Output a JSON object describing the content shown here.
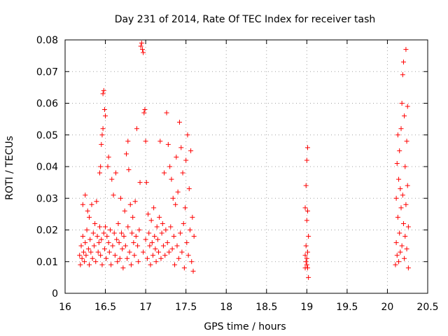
{
  "chart_data": {
    "type": "scatter",
    "title": "Day 231 of 2014, Rate Of TEC Index for receiver tash",
    "xlabel": "GPS time / hours",
    "ylabel": "ROTI / TECUs",
    "xlim": [
      16,
      20.5
    ],
    "ylim": [
      0,
      0.08
    ],
    "grid": true,
    "marker": "+",
    "marker_color": "#ff0000",
    "xticks": [
      "16",
      "16.5",
      "17",
      "17.5",
      "18",
      "18.5",
      "19",
      "19.5",
      "20",
      "20.5"
    ],
    "yticks": [
      "0",
      "0.01",
      "0.02",
      "0.03",
      "0.04",
      "0.05",
      "0.06",
      "0.07",
      "0.08"
    ],
    "series": [
      {
        "name": "ROTI",
        "points": [
          [
            16.18,
            0.012
          ],
          [
            16.19,
            0.009
          ],
          [
            16.2,
            0.015
          ],
          [
            16.21,
            0.011
          ],
          [
            16.22,
            0.018
          ],
          [
            16.22,
            0.028
          ],
          [
            16.23,
            0.013
          ],
          [
            16.24,
            0.01
          ],
          [
            16.25,
            0.031
          ],
          [
            16.25,
            0.016
          ],
          [
            16.26,
            0.012
          ],
          [
            16.27,
            0.02
          ],
          [
            16.28,
            0.026
          ],
          [
            16.29,
            0.014
          ],
          [
            16.3,
            0.009
          ],
          [
            16.3,
            0.024
          ],
          [
            16.31,
            0.017
          ],
          [
            16.32,
            0.013
          ],
          [
            16.33,
            0.028
          ],
          [
            16.34,
            0.011
          ],
          [
            16.35,
            0.019
          ],
          [
            16.36,
            0.015
          ],
          [
            16.37,
            0.022
          ],
          [
            16.38,
            0.01
          ],
          [
            16.39,
            0.029
          ],
          [
            16.4,
            0.018
          ],
          [
            16.41,
            0.013
          ],
          [
            16.42,
            0.016
          ],
          [
            16.43,
            0.038
          ],
          [
            16.43,
            0.021
          ],
          [
            16.44,
            0.04
          ],
          [
            16.44,
            0.012
          ],
          [
            16.45,
            0.047
          ],
          [
            16.45,
            0.017
          ],
          [
            16.46,
            0.05
          ],
          [
            16.46,
            0.009
          ],
          [
            16.47,
            0.052
          ],
          [
            16.47,
            0.063
          ],
          [
            16.48,
            0.064
          ],
          [
            16.48,
            0.019
          ],
          [
            16.49,
            0.058
          ],
          [
            16.49,
            0.014
          ],
          [
            16.5,
            0.056
          ],
          [
            16.5,
            0.021
          ],
          [
            16.51,
            0.011
          ],
          [
            16.52,
            0.018
          ],
          [
            16.53,
            0.04
          ],
          [
            16.54,
            0.043
          ],
          [
            16.54,
            0.016
          ],
          [
            16.55,
            0.013
          ],
          [
            16.56,
            0.02
          ],
          [
            16.57,
            0.009
          ],
          [
            16.58,
            0.036
          ],
          [
            16.59,
            0.015
          ],
          [
            16.6,
            0.031
          ],
          [
            16.61,
            0.019
          ],
          [
            16.62,
            0.012
          ],
          [
            16.63,
            0.038
          ],
          [
            16.64,
            0.017
          ],
          [
            16.65,
            0.01
          ],
          [
            16.66,
            0.022
          ],
          [
            16.67,
            0.016
          ],
          [
            16.68,
            0.011
          ],
          [
            16.69,
            0.03
          ],
          [
            16.7,
            0.019
          ],
          [
            16.71,
            0.014
          ],
          [
            16.72,
            0.008
          ],
          [
            16.73,
            0.018
          ],
          [
            16.74,
            0.026
          ],
          [
            16.75,
            0.015
          ],
          [
            16.76,
            0.044
          ],
          [
            16.77,
            0.011
          ],
          [
            16.78,
            0.048
          ],
          [
            16.78,
            0.021
          ],
          [
            16.79,
            0.039
          ],
          [
            16.8,
            0.013
          ],
          [
            16.81,
            0.028
          ],
          [
            16.82,
            0.009
          ],
          [
            16.83,
            0.019
          ],
          [
            16.84,
            0.024
          ],
          [
            16.85,
            0.016
          ],
          [
            16.86,
            0.012
          ],
          [
            16.87,
            0.029
          ],
          [
            16.88,
            0.018
          ],
          [
            16.89,
            0.052
          ],
          [
            16.9,
            0.015
          ],
          [
            16.91,
            0.01
          ],
          [
            16.92,
            0.02
          ],
          [
            16.93,
            0.035
          ],
          [
            16.94,
            0.078
          ],
          [
            16.95,
            0.079
          ],
          [
            16.96,
            0.077
          ],
          [
            16.97,
            0.076
          ],
          [
            16.97,
            0.013
          ],
          [
            16.98,
            0.057
          ],
          [
            16.99,
            0.058
          ],
          [
            17.0,
            0.048
          ],
          [
            17.0,
            0.017
          ],
          [
            17.01,
            0.035
          ],
          [
            17.02,
            0.011
          ],
          [
            17.03,
            0.025
          ],
          [
            17.04,
            0.019
          ],
          [
            17.05,
            0.015
          ],
          [
            17.06,
            0.009
          ],
          [
            17.07,
            0.023
          ],
          [
            17.08,
            0.016
          ],
          [
            17.09,
            0.012
          ],
          [
            17.1,
            0.027
          ],
          [
            17.11,
            0.018
          ],
          [
            17.12,
            0.014
          ],
          [
            17.13,
            0.01
          ],
          [
            17.14,
            0.021
          ],
          [
            17.15,
            0.017
          ],
          [
            17.16,
            0.013
          ],
          [
            17.17,
            0.024
          ],
          [
            17.18,
            0.048
          ],
          [
            17.19,
            0.011
          ],
          [
            17.2,
            0.019
          ],
          [
            17.21,
            0.022
          ],
          [
            17.22,
            0.015
          ],
          [
            17.23,
            0.038
          ],
          [
            17.24,
            0.012
          ],
          [
            17.25,
            0.02
          ],
          [
            17.26,
            0.057
          ],
          [
            17.27,
            0.016
          ],
          [
            17.28,
            0.047
          ],
          [
            17.29,
            0.013
          ],
          [
            17.3,
            0.04
          ],
          [
            17.31,
            0.021
          ],
          [
            17.32,
            0.036
          ],
          [
            17.33,
            0.014
          ],
          [
            17.34,
            0.03
          ],
          [
            17.35,
            0.018
          ],
          [
            17.36,
            0.009
          ],
          [
            17.37,
            0.028
          ],
          [
            17.38,
            0.043
          ],
          [
            17.39,
            0.015
          ],
          [
            17.4,
            0.032
          ],
          [
            17.41,
            0.011
          ],
          [
            17.42,
            0.054
          ],
          [
            17.43,
            0.019
          ],
          [
            17.44,
            0.046
          ],
          [
            17.45,
            0.013
          ],
          [
            17.46,
            0.038
          ],
          [
            17.47,
            0.022
          ],
          [
            17.48,
            0.008
          ],
          [
            17.49,
            0.027
          ],
          [
            17.5,
            0.042
          ],
          [
            17.51,
            0.016
          ],
          [
            17.52,
            0.05
          ],
          [
            17.53,
            0.012
          ],
          [
            17.54,
            0.033
          ],
          [
            17.55,
            0.02
          ],
          [
            17.56,
            0.045
          ],
          [
            17.57,
            0.01
          ],
          [
            17.58,
            0.024
          ],
          [
            17.59,
            0.007
          ],
          [
            17.6,
            0.018
          ],
          [
            18.98,
            0.027
          ],
          [
            18.98,
            0.012
          ],
          [
            18.98,
            0.008
          ],
          [
            18.99,
            0.034
          ],
          [
            18.99,
            0.015
          ],
          [
            18.99,
            0.01
          ],
          [
            19.0,
            0.042
          ],
          [
            19.0,
            0.023
          ],
          [
            19.0,
            0.011
          ],
          [
            19.0,
            0.009
          ],
          [
            19.01,
            0.046
          ],
          [
            19.01,
            0.026
          ],
          [
            19.01,
            0.013
          ],
          [
            19.01,
            0.008
          ],
          [
            19.02,
            0.005
          ],
          [
            19.02,
            0.018
          ],
          [
            20.1,
            0.009
          ],
          [
            20.11,
            0.016
          ],
          [
            20.11,
            0.03
          ],
          [
            20.12,
            0.041
          ],
          [
            20.12,
            0.012
          ],
          [
            20.13,
            0.05
          ],
          [
            20.13,
            0.024
          ],
          [
            20.14,
            0.036
          ],
          [
            20.14,
            0.01
          ],
          [
            20.15,
            0.045
          ],
          [
            20.15,
            0.019
          ],
          [
            20.16,
            0.033
          ],
          [
            20.16,
            0.013
          ],
          [
            20.17,
            0.052
          ],
          [
            20.17,
            0.027
          ],
          [
            20.18,
            0.06
          ],
          [
            20.18,
            0.015
          ],
          [
            20.19,
            0.069
          ],
          [
            20.19,
            0.031
          ],
          [
            20.2,
            0.073
          ],
          [
            20.2,
            0.022
          ],
          [
            20.21,
            0.056
          ],
          [
            20.21,
            0.011
          ],
          [
            20.22,
            0.04
          ],
          [
            20.22,
            0.018
          ],
          [
            20.23,
            0.077
          ],
          [
            20.23,
            0.028
          ],
          [
            20.24,
            0.048
          ],
          [
            20.24,
            0.014
          ],
          [
            20.25,
            0.059
          ],
          [
            20.25,
            0.034
          ],
          [
            20.26,
            0.008
          ],
          [
            20.26,
            0.021
          ]
        ]
      }
    ]
  }
}
